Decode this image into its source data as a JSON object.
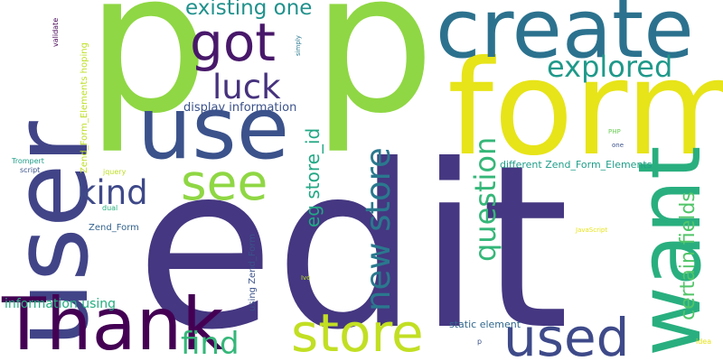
{
  "word_cloud": {
    "words": [
      {
        "id": "edit",
        "text": "edit",
        "color": "#453781"
      },
      {
        "id": "p1",
        "text": "p",
        "color": "#8fd744"
      },
      {
        "id": "p2",
        "text": "p",
        "color": "#8fd744"
      },
      {
        "id": "form",
        "text": "form",
        "color": "#e7e419"
      },
      {
        "id": "user",
        "text": "user",
        "color": "#414487"
      },
      {
        "id": "create",
        "text": "create",
        "color": "#2c728e"
      },
      {
        "id": "use",
        "text": "use",
        "color": "#3b528b"
      },
      {
        "id": "want",
        "text": "want",
        "color": "#29af7f"
      },
      {
        "id": "thank",
        "text": "Thank",
        "color": "#440154"
      },
      {
        "id": "store",
        "text": "store",
        "color": "#c2df23"
      },
      {
        "id": "used",
        "text": "used",
        "color": "#3e4a89"
      },
      {
        "id": "got",
        "text": "got",
        "color": "#48186a"
      },
      {
        "id": "see",
        "text": "see",
        "color": "#8fd744"
      },
      {
        "id": "new-store",
        "text": "new store",
        "color": "#2a788e"
      },
      {
        "id": "question",
        "text": "question",
        "color": "#35b779"
      },
      {
        "id": "explored",
        "text": "explored",
        "color": "#1f998a"
      },
      {
        "id": "luck",
        "text": "luck",
        "color": "#46327e"
      },
      {
        "id": "kind",
        "text": "kind",
        "color": "#3e4989"
      },
      {
        "id": "find",
        "text": "find",
        "color": "#35b779"
      },
      {
        "id": "existing-one",
        "text": "existing one",
        "color": "#21918c"
      },
      {
        "id": "eg-store-id",
        "text": "eg store_id",
        "color": "#22a884"
      },
      {
        "id": "certain-fields",
        "text": "certain fields",
        "color": "#52c569"
      },
      {
        "id": "display-information",
        "text": "display information",
        "color": "#3b528b"
      },
      {
        "id": "information-using",
        "text": "information using",
        "color": "#26ad81"
      },
      {
        "id": "different-zend",
        "text": "different Zend_Form_Elements",
        "color": "#1f9e89"
      },
      {
        "id": "zend-hoping",
        "text": "Zend_Form_Elements hoping",
        "color": "#bddf26"
      },
      {
        "id": "using-zend-form",
        "text": "using Zend_Form",
        "color": "#3b528b"
      },
      {
        "id": "zend-form",
        "text": "Zend_Form",
        "color": "#33638d"
      },
      {
        "id": "static-element",
        "text": "static element",
        "color": "#31688e"
      },
      {
        "id": "validate",
        "text": "validate",
        "color": "#440154"
      },
      {
        "id": "simply",
        "text": "simply",
        "color": "#2a788e"
      },
      {
        "id": "script",
        "text": "script",
        "color": "#3b528b"
      },
      {
        "id": "trompert",
        "text": "Trompert",
        "color": "#1f9e89"
      },
      {
        "id": "jquery",
        "text": "jquery",
        "color": "#bddf26"
      },
      {
        "id": "dual",
        "text": "dual",
        "color": "#29af7f"
      },
      {
        "id": "javascript",
        "text": "JavaScript",
        "color": "#e7e419"
      },
      {
        "id": "php",
        "text": "PHP",
        "color": "#6ece58"
      },
      {
        "id": "one",
        "text": "one",
        "color": "#3b528b"
      },
      {
        "id": "ivo",
        "text": "Ivo",
        "color": "#bddf26"
      },
      {
        "id": "p-small",
        "text": "p",
        "color": "#3b528b"
      },
      {
        "id": "idea",
        "text": "idea",
        "color": "#e7e419"
      }
    ]
  }
}
